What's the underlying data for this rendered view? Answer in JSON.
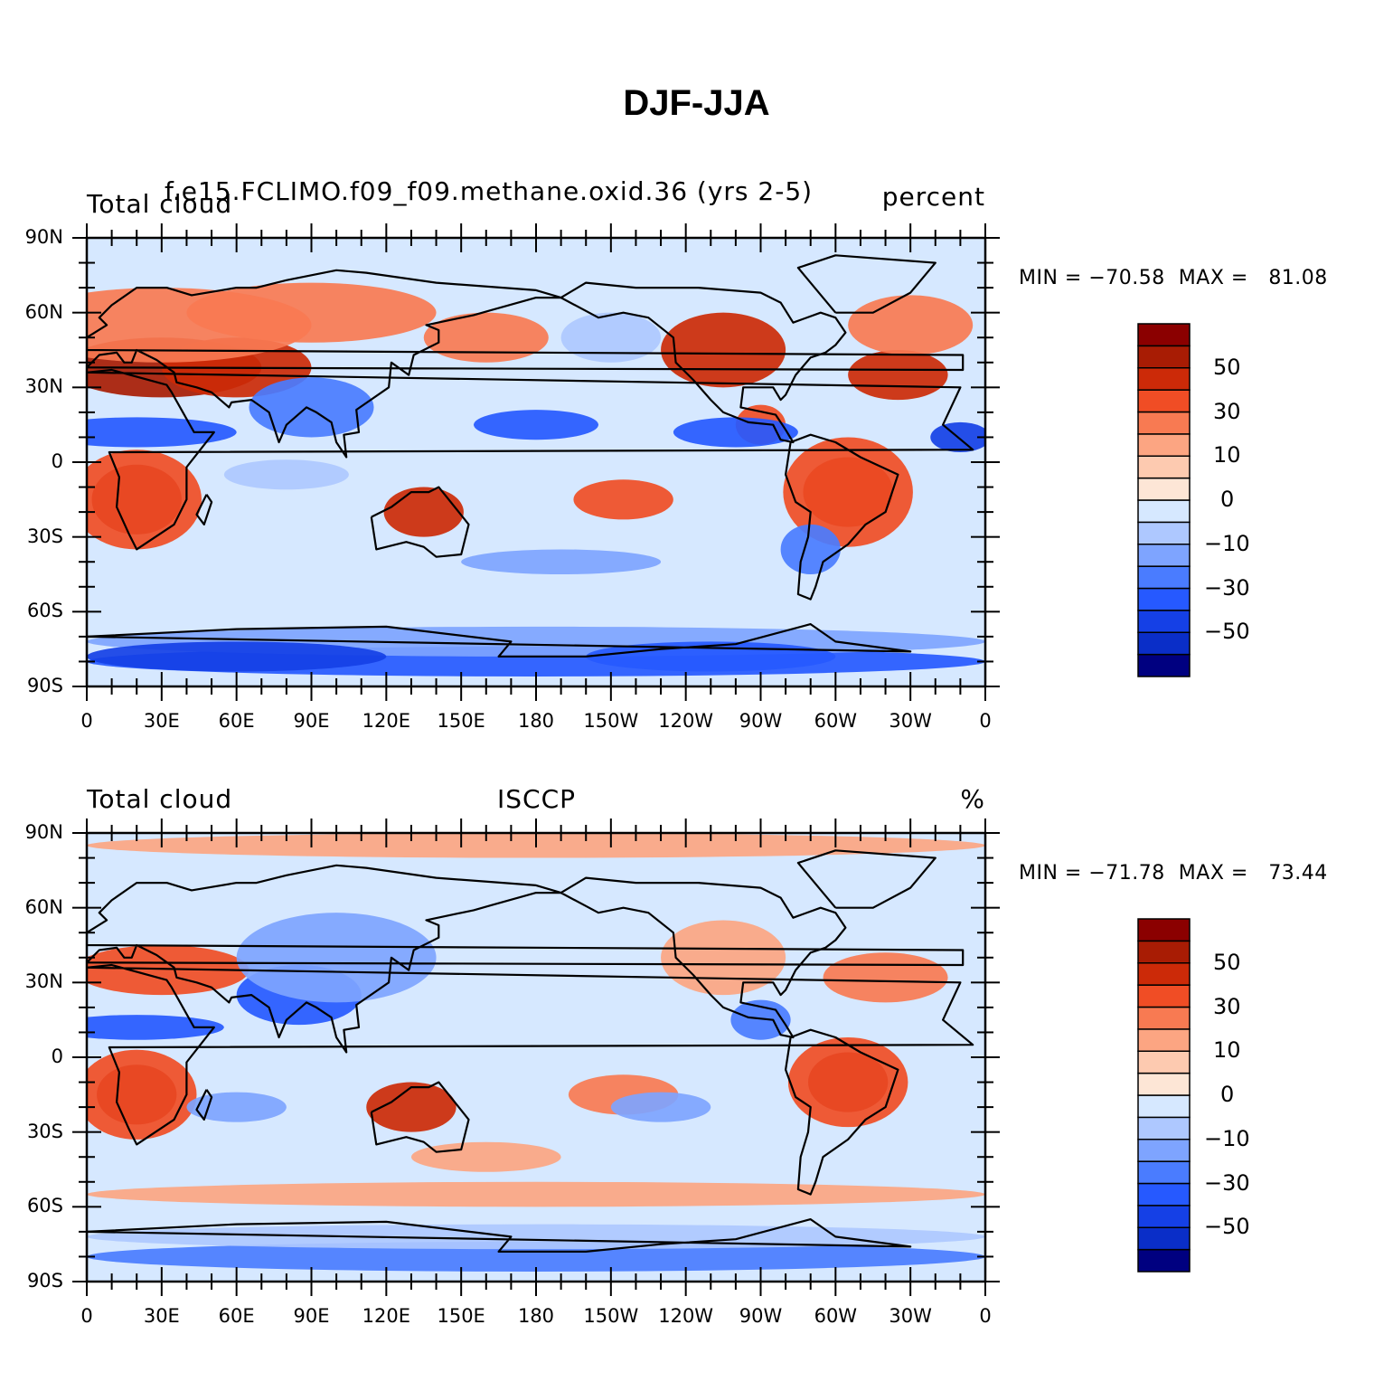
{
  "figure": {
    "title": "DJF-JJA"
  },
  "panels": [
    {
      "left_title": "Total cloud",
      "center_title": "f.e15.FCLIMO.f09_f09.methane.oxid.36 (yrs 2-5)",
      "right_title": "percent",
      "min_label": "MIN = ",
      "min_value": "-70.58",
      "max_label": "MAX = ",
      "max_value": "81.08"
    },
    {
      "left_title": "Total cloud",
      "center_title": "ISCCP",
      "right_title": "%",
      "min_label": "MIN = ",
      "min_value": "-71.78",
      "max_label": "MAX = ",
      "max_value": "73.44"
    }
  ],
  "axes": {
    "lat_ticks": [
      "90N",
      "60N",
      "30N",
      "0",
      "30S",
      "60S",
      "90S"
    ],
    "lon_ticks": [
      "0",
      "30E",
      "60E",
      "90E",
      "120E",
      "150E",
      "180",
      "150W",
      "120W",
      "90W",
      "60W",
      "30W",
      "0"
    ],
    "lat_range": [
      -90,
      90
    ],
    "lon_range": [
      0,
      360
    ]
  },
  "colorbar": {
    "labels": [
      "50",
      "30",
      "10",
      "0",
      "-10",
      "-30",
      "-50"
    ],
    "levels": [
      -60,
      -50,
      -40,
      -30,
      -20,
      -10,
      -5,
      0,
      5,
      10,
      20,
      30,
      40,
      50,
      60
    ],
    "colors": [
      "#000080",
      "#0a2ec8",
      "#1540e6",
      "#2659ff",
      "#4a7cff",
      "#7ea4ff",
      "#aec8ff",
      "#d6e8ff",
      "#fde6d6",
      "#fdcab0",
      "#fca582",
      "#f87a52",
      "#f04d25",
      "#cc2a08",
      "#a81c04",
      "#8b0000"
    ]
  },
  "chart_data": [
    {
      "type": "heatmap",
      "title": "DJF-JJA",
      "variable": "Total cloud",
      "source": "f.e15.FCLIMO.f09_f09.methane.oxid.36 (yrs 2-5)",
      "units": "percent",
      "min": -70.58,
      "max": 81.08,
      "xlim": [
        0,
        360
      ],
      "ylim": [
        -90,
        90
      ]
    },
    {
      "type": "heatmap",
      "title": "DJF-JJA",
      "variable": "Total cloud",
      "source": "ISCCP",
      "units": "%",
      "min": -71.78,
      "max": 73.44,
      "xlim": [
        0,
        360
      ],
      "ylim": [
        -90,
        90
      ]
    }
  ]
}
